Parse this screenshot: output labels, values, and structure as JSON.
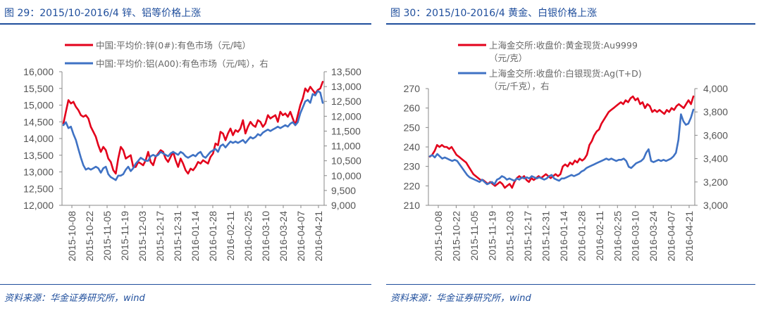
{
  "panels": [
    {
      "title": "图 29：2015/10-2016/4 锌、铝等价格上涨",
      "source": "资料来源：华金证券研究所，wind"
    },
    {
      "title": "图 30：2015/10-2016/4 黄金、白银价格上涨",
      "source": "资料来源：华金证券研究所，wind"
    }
  ],
  "chart_data": [
    {
      "type": "line",
      "title": "图 29：2015/10-2016/4 锌、铝等价格上涨",
      "x_ticks": [
        "2015-10-08",
        "2015-10-22",
        "2015-11-05",
        "2015-11-19",
        "2015-12-03",
        "2015-12-17",
        "2015-12-31",
        "2016-01-14",
        "2016-01-28",
        "2016-02-11",
        "2016-02-25",
        "2016-03-10",
        "2016-03-24",
        "2016-04-07",
        "2016-04-21"
      ],
      "y_left": {
        "lim": [
          12000,
          16000
        ],
        "ticks": [
          "12,000",
          "12,500",
          "13,000",
          "13,500",
          "14,000",
          "14,500",
          "15,000",
          "15,500",
          "16,000"
        ]
      },
      "y_right": {
        "lim": [
          9000,
          13500
        ],
        "ticks": [
          "9,000",
          "9,500",
          "10,000",
          "10,500",
          "11,000",
          "11,500",
          "12,000",
          "12,500",
          "13,000",
          "13,500"
        ]
      },
      "series": [
        {
          "name": "中国:平均价:锌(0#):有色市场（元/吨）",
          "color": "#e3001b",
          "axis": "left",
          "values": [
            14450,
            14800,
            15150,
            15050,
            15100,
            14950,
            14850,
            14700,
            14650,
            14700,
            14600,
            14350,
            14200,
            14050,
            13800,
            13600,
            13750,
            13650,
            13400,
            13300,
            13050,
            12950,
            13400,
            13750,
            13650,
            13400,
            13450,
            13500,
            13150,
            13150,
            13300,
            13250,
            13200,
            13350,
            13600,
            13300,
            13200,
            13450,
            13550,
            13650,
            13600,
            13400,
            13300,
            13450,
            13600,
            13350,
            13150,
            13400,
            13250,
            13050,
            12950,
            13100,
            13050,
            13150,
            13300,
            13250,
            13350,
            13300,
            13250,
            13450,
            13550,
            13850,
            13800,
            14200,
            14150,
            13950,
            14150,
            14300,
            14100,
            14250,
            14200,
            14300,
            14550,
            14150,
            14350,
            14500,
            14400,
            14350,
            14550,
            14500,
            14350,
            14450,
            14700,
            14600,
            14650,
            14700,
            14500,
            14800,
            14700,
            14750,
            14650,
            14800,
            14600,
            14400,
            14700,
            15000,
            15200,
            15500,
            15400,
            15550,
            15450,
            15350,
            15450,
            15500,
            15700
          ]
        },
        {
          "name": "中国:平均价:铝(A00):有色市场（元/吨），右",
          "color": "#3f72c4",
          "axis": "right",
          "values": [
            11700,
            11800,
            11600,
            11650,
            11400,
            11200,
            10900,
            10600,
            10350,
            10200,
            10250,
            10200,
            10250,
            10300,
            10250,
            10100,
            10250,
            10300,
            10050,
            9950,
            9900,
            9850,
            10000,
            10000,
            10050,
            10200,
            10300,
            10150,
            10250,
            10400,
            10500,
            10600,
            10550,
            10500,
            10500,
            10650,
            10700,
            10650,
            10700,
            10800,
            10750,
            10700,
            10650,
            10750,
            10800,
            10750,
            10700,
            10800,
            10750,
            10650,
            10600,
            10650,
            10700,
            10650,
            10750,
            10800,
            10650,
            10600,
            10700,
            10800,
            10850,
            10900,
            10800,
            11000,
            11050,
            10950,
            11050,
            11150,
            11100,
            11150,
            11100,
            11150,
            11200,
            11100,
            11200,
            11300,
            11250,
            11300,
            11400,
            11350,
            11450,
            11500,
            11550,
            11500,
            11550,
            11600,
            11650,
            11600,
            11650,
            11700,
            11650,
            11750,
            11800,
            11700,
            11800,
            12100,
            12300,
            12500,
            12550,
            12450,
            12750,
            12700,
            12850,
            12800,
            12450
          ]
        }
      ]
    },
    {
      "type": "line",
      "title": "图 30：2015/10-2016/4 黄金、白银价格上涨",
      "x_ticks": [
        "2015-10-08",
        "2015-10-22",
        "2015-11-05",
        "2015-11-19",
        "2015-12-03",
        "2015-12-17",
        "2015-12-31",
        "2016-01-14",
        "2016-01-28",
        "2016-02-11",
        "2016-02-25",
        "2016-03-10",
        "2016-03-24",
        "2016-04-07",
        "2016-04-21"
      ],
      "y_left": {
        "lim": [
          210,
          270
        ],
        "ticks": [
          "210",
          "220",
          "230",
          "240",
          "250",
          "260",
          "270"
        ]
      },
      "y_right": {
        "lim": [
          3000,
          4000
        ],
        "ticks": [
          "3,000",
          "3,200",
          "3,400",
          "3,600",
          "3,800",
          "4,000"
        ]
      },
      "series": [
        {
          "name": "上海金交所:收盘价:黄金现货:Au9999（元/克）",
          "color": "#e3001b",
          "axis": "left",
          "values": [
            235,
            236,
            238,
            241,
            240,
            241,
            240,
            240,
            239,
            240,
            238,
            236,
            235,
            234,
            233,
            232,
            230,
            228,
            226,
            225,
            224,
            223,
            223,
            222,
            221,
            222,
            221,
            220,
            221,
            222,
            221,
            219,
            220,
            221,
            219,
            222,
            224,
            225,
            224,
            225,
            223,
            222,
            224,
            223,
            224,
            225,
            224,
            225,
            226,
            225,
            224,
            225,
            226,
            225,
            226,
            230,
            231,
            230,
            232,
            231,
            233,
            232,
            234,
            233,
            234,
            236,
            241,
            243,
            246,
            248,
            249,
            252,
            254,
            256,
            258,
            259,
            260,
            261,
            262,
            263,
            262,
            264,
            263,
            265,
            266,
            264,
            265,
            262,
            263,
            260,
            262,
            261,
            258,
            259,
            258,
            259,
            258,
            257,
            259,
            258,
            260,
            259,
            261,
            262,
            261,
            260,
            262,
            264,
            262,
            266
          ]
        },
        {
          "name": "上海金交所:收盘价:白银现货:Ag(T+D)（元/千克），右",
          "color": "#3f72c4",
          "axis": "right",
          "values": [
            3420,
            3430,
            3410,
            3440,
            3420,
            3400,
            3410,
            3400,
            3390,
            3380,
            3390,
            3380,
            3350,
            3320,
            3290,
            3260,
            3240,
            3230,
            3220,
            3210,
            3200,
            3220,
            3200,
            3180,
            3190,
            3200,
            3180,
            3220,
            3230,
            3250,
            3240,
            3220,
            3230,
            3220,
            3210,
            3230,
            3220,
            3240,
            3230,
            3240,
            3230,
            3250,
            3240,
            3230,
            3240,
            3230,
            3220,
            3230,
            3250,
            3260,
            3230,
            3220,
            3210,
            3230,
            3230,
            3240,
            3250,
            3260,
            3250,
            3260,
            3270,
            3290,
            3300,
            3320,
            3330,
            3340,
            3350,
            3360,
            3370,
            3380,
            3390,
            3400,
            3390,
            3400,
            3390,
            3380,
            3390,
            3390,
            3400,
            3380,
            3330,
            3320,
            3340,
            3360,
            3370,
            3380,
            3400,
            3450,
            3480,
            3380,
            3370,
            3380,
            3390,
            3380,
            3390,
            3380,
            3390,
            3400,
            3420,
            3450,
            3560,
            3780,
            3720,
            3690,
            3700,
            3750,
            3820
          ]
        }
      ]
    }
  ]
}
